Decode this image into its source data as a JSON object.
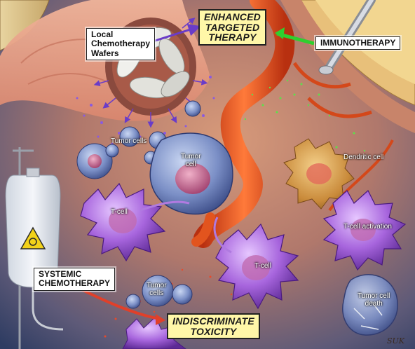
{
  "labels": {
    "local_wafers": [
      "Local",
      "Chemotherapy",
      "Wafers"
    ],
    "enhanced": [
      "ENHANCED",
      "TARGETED",
      "THERAPY"
    ],
    "immunotherapy": "IMMUNOTHERAPY",
    "systemic": [
      "SYSTEMIC",
      "CHEMOTHERAPY"
    ],
    "indiscriminate": [
      "INDISCRIMINATE",
      "TOXICITY"
    ],
    "tumor_cells_top": "Tumor cells",
    "tumor_cell": [
      "Tumor",
      "cell"
    ],
    "dendritic_cell": "Dendritic cell",
    "t_cell_left": "T-cell",
    "t_cell_activation": "T-cell activation",
    "t_cell_center": "T-cell",
    "tumor_cells_bottom": [
      "Tumor",
      "cells"
    ],
    "tumor_cell_death": [
      "Tumor cell",
      "death"
    ]
  },
  "colors": {
    "label_box": "#ffffff",
    "highlight_box": "#fff7a8",
    "arrow_purple": "#6a3cc8",
    "arrow_green": "#2fcf2f",
    "arrow_red": "#e0402a",
    "t_cell": "#9b5bd6",
    "tumor_cell": "#6f86c4",
    "vessel": "#e2541e",
    "dendritic": "#d9a24a"
  },
  "signature": "SUK"
}
